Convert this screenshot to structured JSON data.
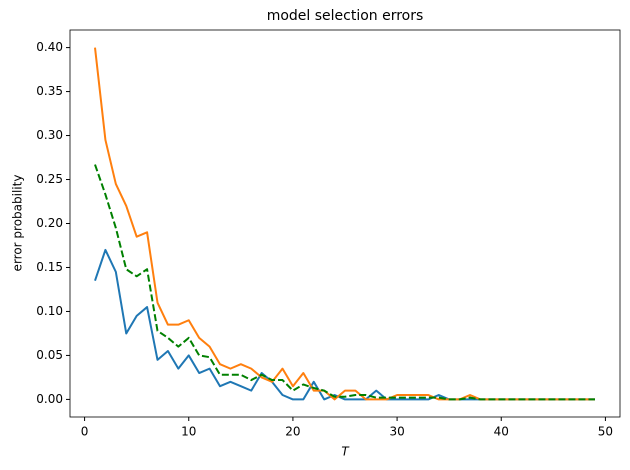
{
  "chart_data": {
    "type": "line",
    "title": "model selection errors",
    "x_label": "T",
    "y_label": "error probability",
    "x": [
      1,
      2,
      3,
      4,
      5,
      6,
      7,
      8,
      9,
      10,
      11,
      12,
      13,
      14,
      15,
      16,
      17,
      18,
      19,
      20,
      21,
      22,
      23,
      24,
      25,
      26,
      27,
      28,
      29,
      30,
      31,
      32,
      33,
      34,
      35,
      36,
      37,
      38,
      39,
      40,
      41,
      42,
      43,
      44,
      45,
      46,
      47,
      48,
      49
    ],
    "series": [
      {
        "color": "#1f77b4",
        "linestyle": "solid",
        "values": [
          0.135,
          0.17,
          0.145,
          0.075,
          0.095,
          0.105,
          0.045,
          0.055,
          0.035,
          0.05,
          0.03,
          0.035,
          0.015,
          0.02,
          0.015,
          0.01,
          0.03,
          0.02,
          0.005,
          0,
          0,
          0.02,
          0,
          0.005,
          0,
          0,
          0,
          0.01,
          0,
          0,
          0,
          0,
          0,
          0.005,
          0,
          0,
          0,
          0,
          0,
          0,
          0,
          0,
          0,
          0,
          0,
          0,
          0,
          0,
          0
        ]
      },
      {
        "color": "#ff7f0e",
        "linestyle": "solid",
        "values": [
          0.4,
          0.295,
          0.245,
          0.22,
          0.185,
          0.19,
          0.11,
          0.085,
          0.085,
          0.09,
          0.07,
          0.06,
          0.04,
          0.035,
          0.04,
          0.035,
          0.025,
          0.02,
          0.035,
          0.015,
          0.03,
          0.01,
          0.01,
          0,
          0.01,
          0.01,
          0,
          0,
          0,
          0.005,
          0.005,
          0.005,
          0.005,
          0,
          0,
          0,
          0.005,
          0,
          0,
          0,
          0,
          0,
          0,
          0,
          0,
          0,
          0,
          0,
          0
        ]
      },
      {
        "color": "#008000",
        "linestyle": "dashed",
        "values": [
          0.267,
          0.233,
          0.195,
          0.148,
          0.14,
          0.148,
          0.078,
          0.07,
          0.06,
          0.07,
          0.05,
          0.048,
          0.028,
          0.028,
          0.028,
          0.022,
          0.028,
          0.022,
          0.022,
          0.01,
          0.017,
          0.013,
          0.01,
          0.003,
          0.003,
          0.005,
          0.005,
          0.002,
          0.002,
          0.002,
          0.002,
          0.002,
          0.002,
          0.002,
          0,
          0,
          0.002,
          0,
          0,
          0,
          0,
          0,
          0,
          0,
          0,
          0,
          0,
          0,
          0
        ]
      }
    ],
    "xlim": [
      -1.4,
      51.4
    ],
    "xticks": [
      0,
      10,
      20,
      30,
      40,
      50
    ],
    "ylim": [
      -0.02,
      0.42
    ],
    "yticks": [
      {
        "value": 0,
        "label": "0.00"
      },
      {
        "value": 0.05,
        "label": "0.05"
      },
      {
        "value": 0.1,
        "label": "0.10"
      },
      {
        "value": 0.15,
        "label": "0.15"
      },
      {
        "value": 0.2,
        "label": "0.20"
      },
      {
        "value": 0.25,
        "label": "0.25"
      },
      {
        "value": 0.3,
        "label": "0.30"
      },
      {
        "value": 0.35,
        "label": "0.35"
      },
      {
        "value": 0.4,
        "label": "0.40"
      }
    ],
    "grid": false
  }
}
